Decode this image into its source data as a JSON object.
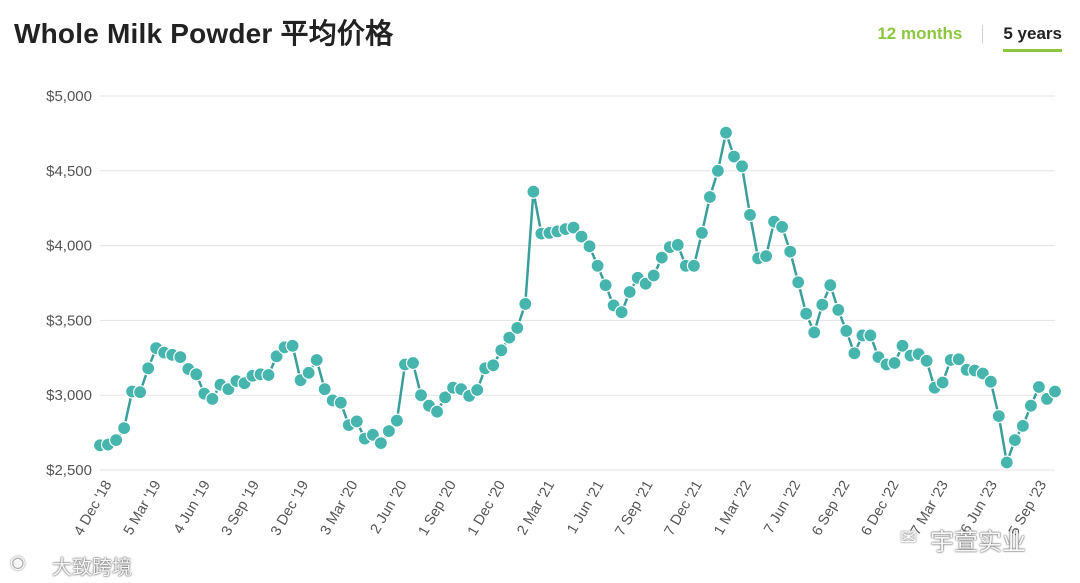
{
  "header": {
    "title": "Whole Milk Powder 平均价格",
    "tabs": [
      {
        "label": "12 months",
        "active": false
      },
      {
        "label": "5 years",
        "active": true
      }
    ]
  },
  "watermarks": [
    {
      "text": "宇萱实业",
      "icon": "wechat-icon"
    },
    {
      "text": "大致跨境",
      "icon": "weibo-icon"
    }
  ],
  "colors": {
    "line": "#3a9e9a",
    "marker_fill": "#45b5ad",
    "accent": "#8cc63f",
    "grid": "#e3e3e3",
    "text": "#555555"
  },
  "chart_data": {
    "type": "line",
    "title": "Whole Milk Powder 平均价格",
    "xlabel": "",
    "ylabel": "",
    "ylim": [
      2500,
      5000
    ],
    "y_ticks": [
      "$2,500",
      "$3,000",
      "$3,500",
      "$4,000",
      "$4,500",
      "$5,000"
    ],
    "x_tick_labels": [
      "4 Dec '18",
      "5 Mar '19",
      "4 Jun '19",
      "3 Sep '19",
      "3 Dec '19",
      "3 Mar '20",
      "2 Jun '20",
      "1 Sep '20",
      "1 Dec '20",
      "2 Mar '21",
      "1 Jun '21",
      "7 Sep '21",
      "7 Dec '21",
      "1 Mar '22",
      "7 Jun '22",
      "6 Sep '22",
      "6 Dec '22",
      "7 Mar '23",
      "6 Jun '23",
      "5 Sep '23"
    ],
    "grid": true,
    "legend": "none",
    "series": [
      {
        "values": [
          2665,
          2670,
          2700,
          2780,
          3025,
          3020,
          3180,
          3315,
          3285,
          3270,
          3255,
          3175,
          3140,
          3010,
          2975,
          3070,
          3040,
          3095,
          3080,
          3130,
          3140,
          3135,
          3260,
          3320,
          3330,
          3100,
          3150,
          3235,
          3040,
          2965,
          2950,
          2800,
          2825,
          2710,
          2735,
          2680,
          2760,
          2830,
          3205,
          3215,
          3000,
          2930,
          2890,
          2985,
          3050,
          3040,
          2995,
          3035,
          3180,
          3200,
          3300,
          3385,
          3450,
          3610,
          4360,
          4080,
          4085,
          4095,
          4110,
          4120,
          4060,
          3995,
          3865,
          3735,
          3600,
          3555,
          3690,
          3785,
          3745,
          3800,
          3920,
          3990,
          4005,
          3865,
          3865,
          4085,
          4325,
          4500,
          4755,
          4595,
          4530,
          4205,
          3915,
          3930,
          4160,
          4125,
          3960,
          3755,
          3545,
          3420,
          3605,
          3735,
          3570,
          3430,
          3280,
          3400,
          3400,
          3255,
          3205,
          3215,
          3330,
          3265,
          3275,
          3230,
          3050,
          3085,
          3235,
          3240,
          3170,
          3165,
          3145,
          3090,
          2860,
          2550,
          2700,
          2795,
          2930,
          3055,
          2975,
          3025
        ]
      }
    ]
  }
}
